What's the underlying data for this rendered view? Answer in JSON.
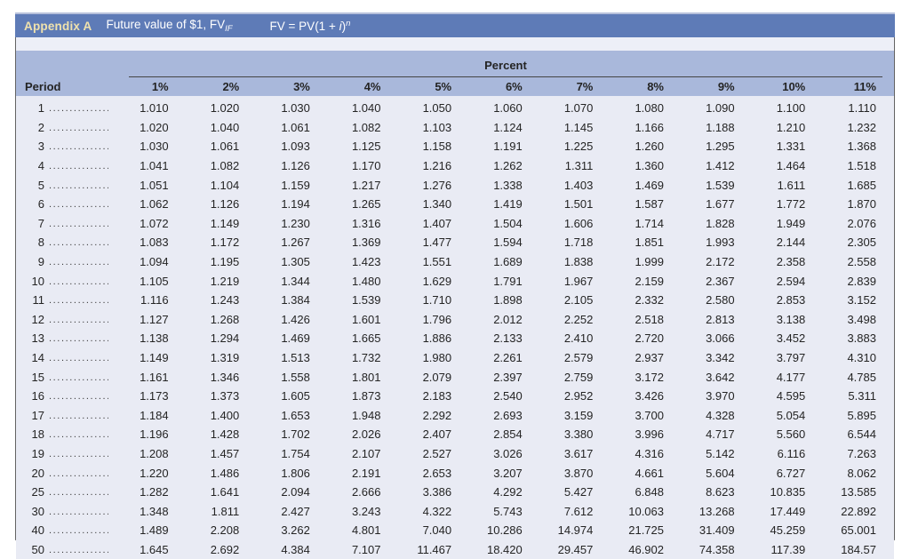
{
  "titlebar": {
    "badge": "Appendix A",
    "title": "Future value of $1, FV",
    "title_sub": "IF",
    "formula_pre": "FV = PV(1 + ",
    "formula_var": "i",
    "formula_close": ")",
    "formula_exp": "n"
  },
  "table": {
    "group_header": "Percent",
    "period_header": "Period",
    "percent_columns": [
      "1%",
      "2%",
      "3%",
      "4%",
      "5%",
      "6%",
      "7%",
      "8%",
      "9%",
      "10%",
      "11%"
    ],
    "leader": "................................................................",
    "rows": [
      {
        "period": "1",
        "values": [
          "1.010",
          "1.020",
          "1.030",
          "1.040",
          "1.050",
          "1.060",
          "1.070",
          "1.080",
          "1.090",
          "1.100",
          "1.110"
        ]
      },
      {
        "period": "2",
        "values": [
          "1.020",
          "1.040",
          "1.061",
          "1.082",
          "1.103",
          "1.124",
          "1.145",
          "1.166",
          "1.188",
          "1.210",
          "1.232"
        ]
      },
      {
        "period": "3",
        "values": [
          "1.030",
          "1.061",
          "1.093",
          "1.125",
          "1.158",
          "1.191",
          "1.225",
          "1.260",
          "1.295",
          "1.331",
          "1.368"
        ]
      },
      {
        "period": "4",
        "values": [
          "1.041",
          "1.082",
          "1.126",
          "1.170",
          "1.216",
          "1.262",
          "1.311",
          "1.360",
          "1.412",
          "1.464",
          "1.518"
        ]
      },
      {
        "period": "5",
        "values": [
          "1.051",
          "1.104",
          "1.159",
          "1.217",
          "1.276",
          "1.338",
          "1.403",
          "1.469",
          "1.539",
          "1.611",
          "1.685"
        ]
      },
      {
        "period": "6",
        "values": [
          "1.062",
          "1.126",
          "1.194",
          "1.265",
          "1.340",
          "1.419",
          "1.501",
          "1.587",
          "1.677",
          "1.772",
          "1.870"
        ]
      },
      {
        "period": "7",
        "values": [
          "1.072",
          "1.149",
          "1.230",
          "1.316",
          "1.407",
          "1.504",
          "1.606",
          "1.714",
          "1.828",
          "1.949",
          "2.076"
        ]
      },
      {
        "period": "8",
        "values": [
          "1.083",
          "1.172",
          "1.267",
          "1.369",
          "1.477",
          "1.594",
          "1.718",
          "1.851",
          "1.993",
          "2.144",
          "2.305"
        ]
      },
      {
        "period": "9",
        "values": [
          "1.094",
          "1.195",
          "1.305",
          "1.423",
          "1.551",
          "1.689",
          "1.838",
          "1.999",
          "2.172",
          "2.358",
          "2.558"
        ]
      },
      {
        "period": "10",
        "values": [
          "1.105",
          "1.219",
          "1.344",
          "1.480",
          "1.629",
          "1.791",
          "1.967",
          "2.159",
          "2.367",
          "2.594",
          "2.839"
        ]
      },
      {
        "period": "11",
        "values": [
          "1.116",
          "1.243",
          "1.384",
          "1.539",
          "1.710",
          "1.898",
          "2.105",
          "2.332",
          "2.580",
          "2.853",
          "3.152"
        ]
      },
      {
        "period": "12",
        "values": [
          "1.127",
          "1.268",
          "1.426",
          "1.601",
          "1.796",
          "2.012",
          "2.252",
          "2.518",
          "2.813",
          "3.138",
          "3.498"
        ]
      },
      {
        "period": "13",
        "values": [
          "1.138",
          "1.294",
          "1.469",
          "1.665",
          "1.886",
          "2.133",
          "2.410",
          "2.720",
          "3.066",
          "3.452",
          "3.883"
        ]
      },
      {
        "period": "14",
        "values": [
          "1.149",
          "1.319",
          "1.513",
          "1.732",
          "1.980",
          "2.261",
          "2.579",
          "2.937",
          "3.342",
          "3.797",
          "4.310"
        ]
      },
      {
        "period": "15",
        "values": [
          "1.161",
          "1.346",
          "1.558",
          "1.801",
          "2.079",
          "2.397",
          "2.759",
          "3.172",
          "3.642",
          "4.177",
          "4.785"
        ]
      },
      {
        "period": "16",
        "values": [
          "1.173",
          "1.373",
          "1.605",
          "1.873",
          "2.183",
          "2.540",
          "2.952",
          "3.426",
          "3.970",
          "4.595",
          "5.311"
        ]
      },
      {
        "period": "17",
        "values": [
          "1.184",
          "1.400",
          "1.653",
          "1.948",
          "2.292",
          "2.693",
          "3.159",
          "3.700",
          "4.328",
          "5.054",
          "5.895"
        ]
      },
      {
        "period": "18",
        "values": [
          "1.196",
          "1.428",
          "1.702",
          "2.026",
          "2.407",
          "2.854",
          "3.380",
          "3.996",
          "4.717",
          "5.560",
          "6.544"
        ]
      },
      {
        "period": "19",
        "values": [
          "1.208",
          "1.457",
          "1.754",
          "2.107",
          "2.527",
          "3.026",
          "3.617",
          "4.316",
          "5.142",
          "6.116",
          "7.263"
        ]
      },
      {
        "period": "20",
        "values": [
          "1.220",
          "1.486",
          "1.806",
          "2.191",
          "2.653",
          "3.207",
          "3.870",
          "4.661",
          "5.604",
          "6.727",
          "8.062"
        ]
      },
      {
        "period": "25",
        "values": [
          "1.282",
          "1.641",
          "2.094",
          "2.666",
          "3.386",
          "4.292",
          "5.427",
          "6.848",
          "8.623",
          "10.835",
          "13.585"
        ]
      },
      {
        "period": "30",
        "values": [
          "1.348",
          "1.811",
          "2.427",
          "3.243",
          "4.322",
          "5.743",
          "7.612",
          "10.063",
          "13.268",
          "17.449",
          "22.892"
        ]
      },
      {
        "period": "40",
        "values": [
          "1.489",
          "2.208",
          "3.262",
          "4.801",
          "7.040",
          "10.286",
          "14.974",
          "21.725",
          "31.409",
          "45.259",
          "65.001"
        ]
      },
      {
        "period": "50",
        "values": [
          "1.645",
          "2.692",
          "4.384",
          "7.107",
          "11.467",
          "18.420",
          "29.457",
          "46.902",
          "74.358",
          "117.39",
          "184.57"
        ]
      }
    ]
  },
  "colors": {
    "titlebar_bg": "#5e7bb7",
    "badge_text": "#f0e2ad",
    "header_bg": "#a9b8db",
    "body_bg": "#e9ebf4",
    "gap_bg": "#edeff7"
  }
}
